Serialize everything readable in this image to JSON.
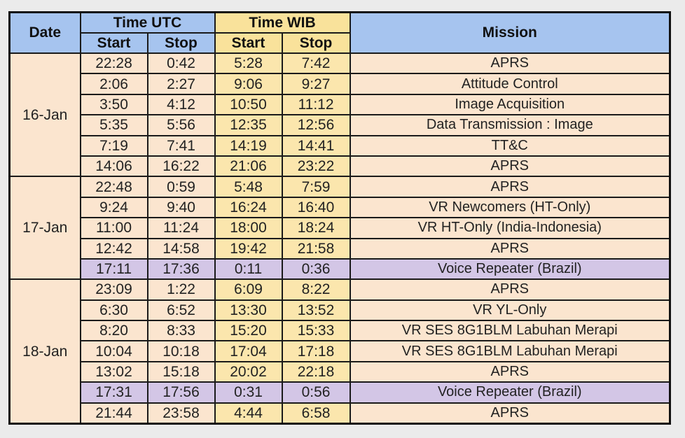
{
  "header": {
    "date": "Date",
    "time_utc": "Time UTC",
    "time_wib": "Time WIB",
    "mission": "Mission",
    "start": "Start",
    "stop": "Stop"
  },
  "groups": [
    {
      "date": "16-Jan",
      "rows": [
        {
          "utc_start": "22:28",
          "utc_stop": "0:42",
          "wib_start": "5:28",
          "wib_stop": "7:42",
          "mission": "APRS"
        },
        {
          "utc_start": "2:06",
          "utc_stop": "2:27",
          "wib_start": "9:06",
          "wib_stop": "9:27",
          "mission": "Attitude Control"
        },
        {
          "utc_start": "3:50",
          "utc_stop": "4:12",
          "wib_start": "10:50",
          "wib_stop": "11:12",
          "mission": "Image Acquisition"
        },
        {
          "utc_start": "5:35",
          "utc_stop": "5:56",
          "wib_start": "12:35",
          "wib_stop": "12:56",
          "mission": "Data Transmission : Image"
        },
        {
          "utc_start": "7:19",
          "utc_stop": "7:41",
          "wib_start": "14:19",
          "wib_stop": "14:41",
          "mission": "TT&C"
        },
        {
          "utc_start": "14:06",
          "utc_stop": "16:22",
          "wib_start": "21:06",
          "wib_stop": "23:22",
          "mission": "APRS"
        }
      ]
    },
    {
      "date": "17-Jan",
      "rows": [
        {
          "utc_start": "22:48",
          "utc_stop": "0:59",
          "wib_start": "5:48",
          "wib_stop": "7:59",
          "mission": "APRS"
        },
        {
          "utc_start": "9:24",
          "utc_stop": "9:40",
          "wib_start": "16:24",
          "wib_stop": "16:40",
          "mission": "VR Newcomers (HT-Only)"
        },
        {
          "utc_start": "11:00",
          "utc_stop": "11:24",
          "wib_start": "18:00",
          "wib_stop": "18:24",
          "mission": "VR HT-Only (India-Indonesia)"
        },
        {
          "utc_start": "12:42",
          "utc_stop": "14:58",
          "wib_start": "19:42",
          "wib_stop": "21:58",
          "mission": "APRS"
        },
        {
          "utc_start": "17:11",
          "utc_stop": "17:36",
          "wib_start": "0:11",
          "wib_stop": "0:36",
          "mission": "Voice Repeater (Brazil)",
          "highlight": true
        }
      ]
    },
    {
      "date": "18-Jan",
      "rows": [
        {
          "utc_start": "23:09",
          "utc_stop": "1:22",
          "wib_start": "6:09",
          "wib_stop": "8:22",
          "mission": "APRS"
        },
        {
          "utc_start": "6:30",
          "utc_stop": "6:52",
          "wib_start": "13:30",
          "wib_stop": "13:52",
          "mission": "VR YL-Only"
        },
        {
          "utc_start": "8:20",
          "utc_stop": "8:33",
          "wib_start": "15:20",
          "wib_stop": "15:33",
          "mission": "VR SES 8G1BLM Labuhan Merapi"
        },
        {
          "utc_start": "10:04",
          "utc_stop": "10:18",
          "wib_start": "17:04",
          "wib_stop": "17:18",
          "mission": "VR SES 8G1BLM Labuhan Merapi"
        },
        {
          "utc_start": "13:02",
          "utc_stop": "15:18",
          "wib_start": "20:02",
          "wib_stop": "22:18",
          "mission": "APRS"
        },
        {
          "utc_start": "17:31",
          "utc_stop": "17:56",
          "wib_start": "0:31",
          "wib_stop": "0:56",
          "mission": "Voice Repeater (Brazil)",
          "highlight": true
        },
        {
          "utc_start": "21:44",
          "utc_stop": "23:58",
          "wib_start": "4:44",
          "wib_stop": "6:58",
          "mission": "APRS"
        }
      ]
    }
  ]
}
